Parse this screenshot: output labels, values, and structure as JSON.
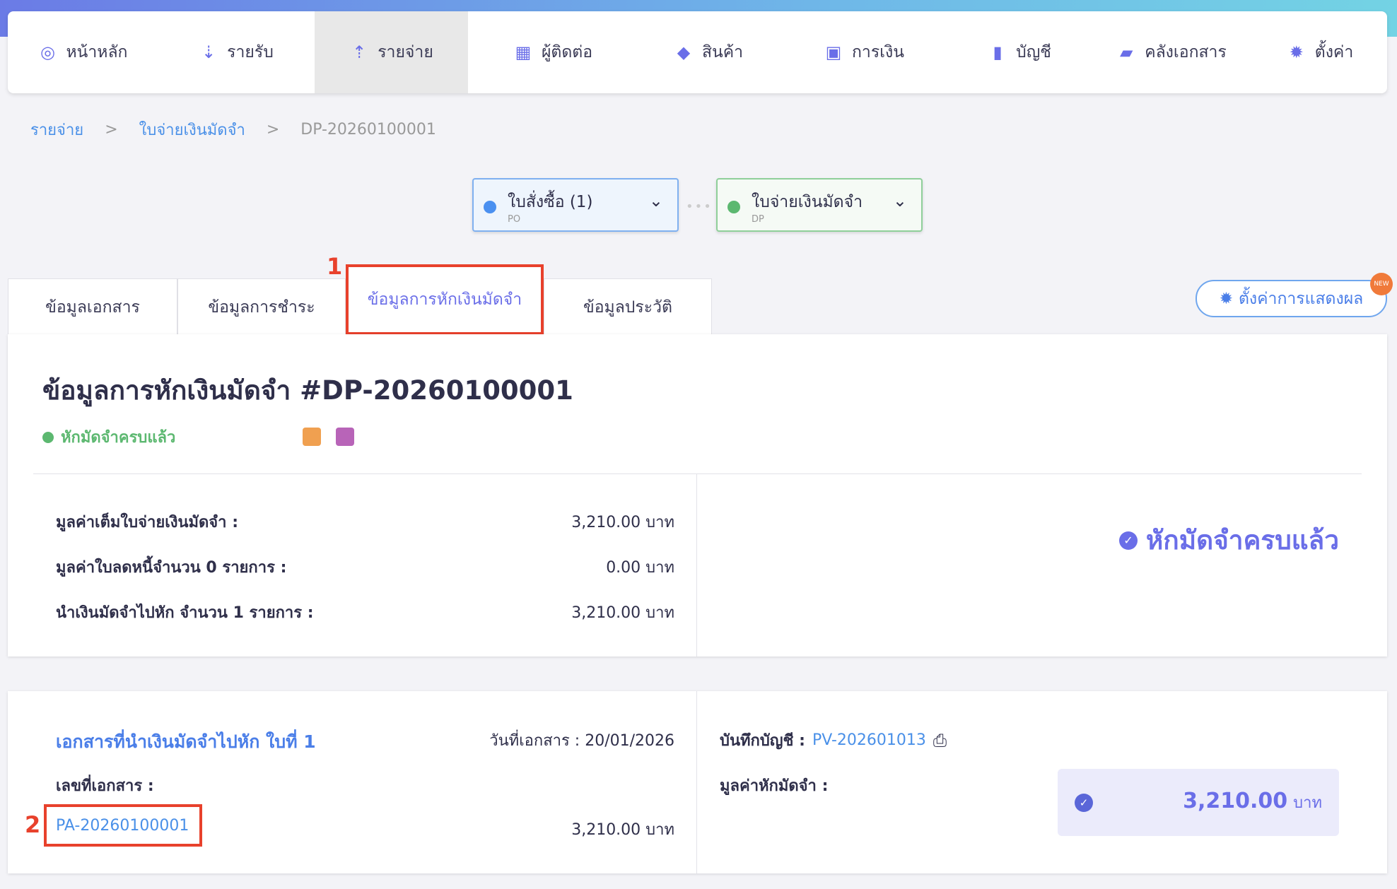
{
  "nav": [
    {
      "label": "หน้าหลัก",
      "icon": "dashboard-icon"
    },
    {
      "label": "รายรับ",
      "icon": "income-icon"
    },
    {
      "label": "รายจ่าย",
      "icon": "expense-icon",
      "active": true
    },
    {
      "label": "ผู้ติดต่อ",
      "icon": "contacts-icon"
    },
    {
      "label": "สินค้า",
      "icon": "box-icon"
    },
    {
      "label": "การเงิน",
      "icon": "money-icon"
    },
    {
      "label": "บัญชี",
      "icon": "ledger-icon"
    },
    {
      "label": "คลังเอกสาร",
      "icon": "folder-icon"
    },
    {
      "label": "ตั้งค่า",
      "icon": "gear-icon"
    }
  ],
  "breadcrumb": {
    "items": [
      "รายจ่าย",
      "ใบจ่ายเงินมัดจำ"
    ],
    "current": "DP-20260100001",
    "sep": ">"
  },
  "chain": [
    {
      "title": "ใบสั่งซื้อ (1)",
      "sub": "PO",
      "color": "#4a90f0"
    },
    {
      "title": "ใบจ่ายเงินมัดจำ",
      "sub": "DP",
      "color": "#5cb870"
    }
  ],
  "tabs": [
    "ข้อมูลเอกสาร",
    "ข้อมูลการชำระ",
    "ข้อมูลการหักเงินมัดจำ",
    "ข้อมูลประวัติ"
  ],
  "annotations": {
    "one": "1",
    "two": "2"
  },
  "display_settings": {
    "label": "ตั้งค่าการแสดงผล",
    "badge": "NEW"
  },
  "summary": {
    "title": "ข้อมูลการหักเงินมัดจำ #DP-20260100001",
    "status": "หักมัดจำครบแล้ว",
    "rows": [
      {
        "label": "มูลค่าเต็มใบจ่ายเงินมัดจำ :",
        "value": "3,210.00 บาท"
      },
      {
        "label": "มูลค่าใบลดหนี้จำนวน 0 รายการ :",
        "value": "0.00 บาท"
      },
      {
        "label": "นำเงินมัดจำไปหัก จำนวน 1 รายการ :",
        "value": "3,210.00 บาท"
      }
    ],
    "big_status": "หักมัดจำครบแล้ว"
  },
  "deduction": {
    "title": "เอกสารที่นำเงินมัดจำไปหัก ใบที่ 1",
    "date_label": "วันที่เอกสาร : 20/01/2026",
    "doc_no_label": "เลขที่เอกสาร :",
    "doc_no": "PA-20260100001",
    "doc_amount": "3,210.00 บาท",
    "journal_label": "บันทึกบัญชี :",
    "journal_no": "PV-202601013",
    "deduct_label": "มูลค่าหักมัดจำ :",
    "deduct_amount": "3,210.00",
    "currency": "บาท"
  }
}
